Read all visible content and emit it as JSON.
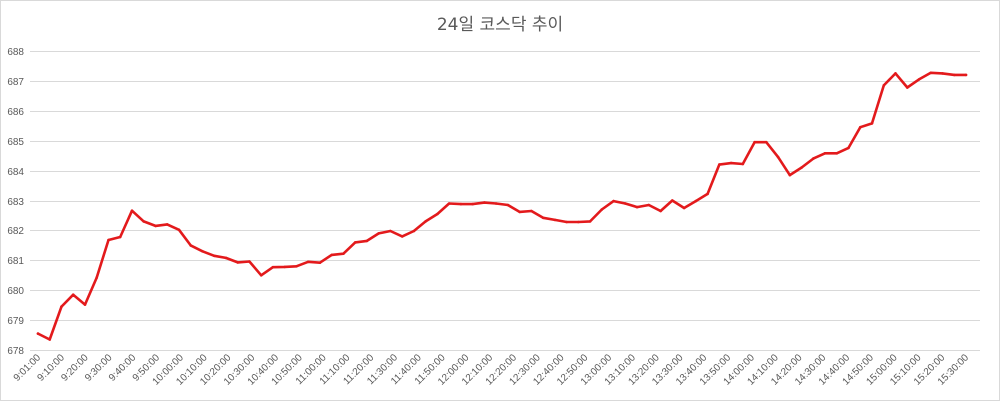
{
  "chart_data": {
    "type": "line",
    "title": "24일 코스닥 추이",
    "xlabel": "",
    "ylabel": "",
    "ylim": [
      678,
      688
    ],
    "yticks": [
      678,
      679,
      680,
      681,
      682,
      683,
      684,
      685,
      686,
      687,
      688
    ],
    "grid": true,
    "legend": "none",
    "colors": {
      "line": "#e31a1c",
      "grid": "#d9d9d9",
      "text": "#595959"
    },
    "x_tick_labels": [
      "9:01:00",
      "9:10:00",
      "9:20:00",
      "9:30:00",
      "9:40:00",
      "9:50:00",
      "10:00:00",
      "10:10:00",
      "10:20:00",
      "10:30:00",
      "10:40:00",
      "10:50:00",
      "11:00:00",
      "11:10:00",
      "11:20:00",
      "11:30:00",
      "11:40:00",
      "11:50:00",
      "12:00:00",
      "12:10:00",
      "12:20:00",
      "12:30:00",
      "12:40:00",
      "12:50:00",
      "13:00:00",
      "13:10:00",
      "13:20:00",
      "13:30:00",
      "13:40:00",
      "13:50:00",
      "14:00:00",
      "14:10:00",
      "14:20:00",
      "14:30:00",
      "14:40:00",
      "14:50:00",
      "15:00:00",
      "15:10:00",
      "15:20:00",
      "15:30:00"
    ],
    "series": [
      {
        "values": [
          678.55,
          678.35,
          679.45,
          679.85,
          679.52,
          680.42,
          681.68,
          681.78,
          682.66,
          682.3,
          682.15,
          682.2,
          682.02,
          681.5,
          681.3,
          681.15,
          681.08,
          680.93,
          680.96,
          680.5,
          680.77,
          680.78,
          680.8,
          680.95,
          680.92,
          681.18,
          681.22,
          681.6,
          681.65,
          681.9,
          681.98,
          681.8,
          681.98,
          682.3,
          682.55,
          682.9,
          682.88,
          682.88,
          682.93,
          682.9,
          682.85,
          682.62,
          682.65,
          682.42,
          682.35,
          682.28,
          682.28,
          682.3,
          682.7,
          682.98,
          682.9,
          682.78,
          682.85,
          682.65,
          683.0,
          682.75,
          682.98,
          683.22,
          684.2,
          684.25,
          684.22,
          684.95,
          684.95,
          684.45,
          683.85,
          684.1,
          684.4,
          684.58,
          684.58,
          684.76,
          685.45,
          685.58,
          686.85,
          687.25,
          686.78,
          687.05,
          687.27,
          687.25,
          687.2,
          687.2
        ]
      }
    ]
  }
}
